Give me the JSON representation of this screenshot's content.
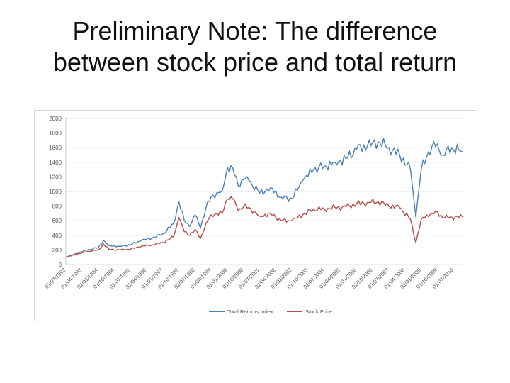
{
  "slide": {
    "title_line1": "Preliminary Note: The difference",
    "title_line2": "between stock price and total return"
  },
  "chart_data": {
    "type": "line",
    "ylim": [
      0,
      2000
    ],
    "yticks": [
      0,
      200,
      400,
      600,
      800,
      1000,
      1200,
      1400,
      1600,
      1800,
      2000
    ],
    "grid": "horizontal",
    "legend_position": "bottom",
    "x_tick_labels": [
      "01/07/1992",
      "01/04/1993",
      "01/01/1994",
      "01/10/1994",
      "01/07/1995",
      "01/04/1996",
      "01/01/1997",
      "01/10/1997",
      "01/07/1998",
      "01/04/1999",
      "01/01/2000",
      "01/10/2000",
      "01/07/2001",
      "01/04/2002",
      "01/01/2003",
      "01/10/2003",
      "01/07/2004",
      "01/04/2005",
      "01/01/2006",
      "01/10/2006",
      "01/07/2007",
      "01/04/2008",
      "01/01/2009",
      "01/10/2009",
      "01/07/2010"
    ],
    "x_start": "1992-07",
    "x_end": "2010-12",
    "series": [
      {
        "name": "Total Returns Index",
        "color": "#4a7fb8",
        "x": [
          "1992-07",
          "1993-01",
          "1993-07",
          "1994-01",
          "1994-04",
          "1994-07",
          "1995-01",
          "1995-07",
          "1996-01",
          "1996-07",
          "1997-01",
          "1997-07",
          "1997-10",
          "1998-01",
          "1998-04",
          "1998-07",
          "1998-10",
          "1999-01",
          "1999-04",
          "1999-07",
          "1999-10",
          "2000-01",
          "2000-04",
          "2000-07",
          "2000-10",
          "2001-01",
          "2001-07",
          "2002-01",
          "2002-07",
          "2003-01",
          "2003-07",
          "2004-01",
          "2004-07",
          "2005-01",
          "2005-07",
          "2006-01",
          "2006-07",
          "2007-01",
          "2007-07",
          "2008-01",
          "2008-07",
          "2008-10",
          "2009-01",
          "2009-04",
          "2009-07",
          "2009-10",
          "2010-01",
          "2010-06",
          "2010-12"
        ],
        "values": [
          100,
          150,
          200,
          230,
          330,
          260,
          250,
          270,
          330,
          360,
          420,
          560,
          860,
          600,
          520,
          680,
          500,
          770,
          930,
          980,
          1000,
          1330,
          1320,
          1080,
          1160,
          1150,
          980,
          1050,
          920,
          900,
          1150,
          1300,
          1350,
          1400,
          1450,
          1580,
          1620,
          1680,
          1600,
          1500,
          1300,
          650,
          1300,
          1480,
          1620,
          1650,
          1500,
          1600,
          1540
        ]
      },
      {
        "name": "Stock Price",
        "color": "#b84a44",
        "x": [
          "1992-07",
          "1993-01",
          "1993-07",
          "1994-01",
          "1994-04",
          "1994-07",
          "1995-01",
          "1995-07",
          "1996-01",
          "1996-07",
          "1997-01",
          "1997-07",
          "1997-10",
          "1998-01",
          "1998-04",
          "1998-07",
          "1998-10",
          "1999-01",
          "1999-04",
          "1999-07",
          "1999-10",
          "2000-01",
          "2000-04",
          "2000-07",
          "2000-10",
          "2001-01",
          "2001-07",
          "2002-01",
          "2002-07",
          "2003-01",
          "2003-07",
          "2004-01",
          "2004-07",
          "2005-01",
          "2005-07",
          "2006-01",
          "2006-07",
          "2007-01",
          "2007-07",
          "2008-01",
          "2008-07",
          "2008-10",
          "2009-01",
          "2009-04",
          "2009-07",
          "2009-10",
          "2010-01",
          "2010-06",
          "2010-12"
        ],
        "values": [
          100,
          140,
          180,
          200,
          280,
          210,
          200,
          210,
          250,
          270,
          300,
          380,
          640,
          450,
          400,
          480,
          360,
          560,
          680,
          700,
          700,
          900,
          900,
          740,
          790,
          780,
          660,
          700,
          600,
          600,
          680,
          760,
          760,
          780,
          790,
          830,
          850,
          860,
          800,
          780,
          620,
          300,
          620,
          680,
          700,
          720,
          640,
          650,
          650
        ]
      }
    ]
  }
}
